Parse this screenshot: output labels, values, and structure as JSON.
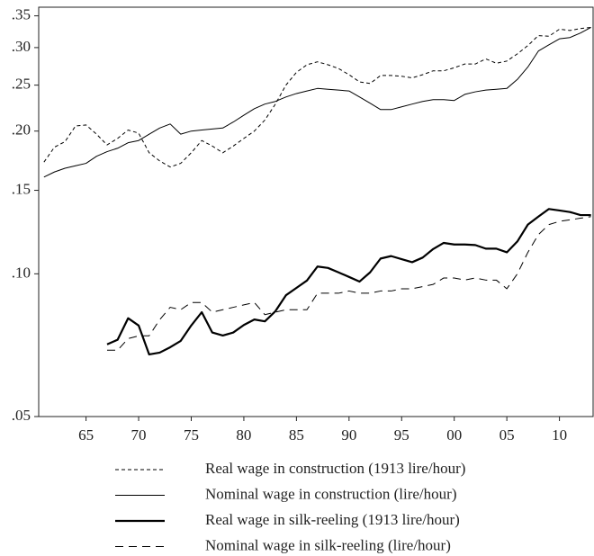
{
  "chart_data": {
    "type": "line",
    "log_y": true,
    "grid": false,
    "legend": "bottom",
    "x": [
      61,
      62,
      63,
      64,
      65,
      66,
      67,
      68,
      69,
      70,
      71,
      72,
      73,
      74,
      75,
      76,
      77,
      78,
      79,
      80,
      81,
      82,
      83,
      84,
      85,
      86,
      87,
      88,
      89,
      90,
      91,
      92,
      93,
      94,
      95,
      96,
      97,
      98,
      99,
      100,
      101,
      102,
      103,
      104,
      105,
      106,
      107,
      108,
      109,
      110,
      111,
      112,
      113
    ],
    "xlim": [
      60.5,
      113.2
    ],
    "xticks": [
      65,
      70,
      75,
      80,
      85,
      90,
      95,
      {
        "value": 100,
        "label": "00"
      },
      {
        "value": 105,
        "label": "05"
      },
      {
        "value": 110,
        "label": "10"
      }
    ],
    "ylim": [
      0.05,
      0.365
    ],
    "yticks": [
      {
        "value": 0.05,
        "label": ".05"
      },
      {
        "value": 0.1,
        "label": ".10"
      },
      {
        "value": 0.15,
        "label": ".15"
      },
      {
        "value": 0.2,
        "label": ".20"
      },
      {
        "value": 0.25,
        "label": ".25"
      },
      {
        "value": 0.3,
        "label": ".30"
      },
      {
        "value": 0.35,
        "label": ".35"
      }
    ],
    "series": [
      {
        "name": "Real wage in construction (1913 lire/hour)",
        "color": "#000000",
        "width": 1,
        "dash": "4 3",
        "values": [
          0.172,
          0.185,
          0.19,
          0.205,
          0.206,
          0.197,
          0.187,
          0.193,
          0.201,
          0.198,
          0.18,
          0.173,
          0.168,
          0.171,
          0.18,
          0.191,
          0.186,
          0.18,
          0.186,
          0.193,
          0.2,
          0.211,
          0.228,
          0.25,
          0.266,
          0.276,
          0.28,
          0.276,
          0.271,
          0.263,
          0.254,
          0.252,
          0.262,
          0.262,
          0.261,
          0.259,
          0.263,
          0.268,
          0.268,
          0.272,
          0.277,
          0.277,
          0.284,
          0.278,
          0.281,
          0.291,
          0.303,
          0.318,
          0.317,
          0.328,
          0.326,
          0.329,
          0.331
        ]
      },
      {
        "name": "Nominal wage in construction (lire/hour)",
        "color": "#000000",
        "width": 1,
        "dash": "none",
        "values": [
          0.16,
          0.164,
          0.167,
          0.169,
          0.171,
          0.177,
          0.181,
          0.184,
          0.189,
          0.191,
          0.197,
          0.203,
          0.207,
          0.197,
          0.2,
          0.201,
          0.202,
          0.203,
          0.209,
          0.216,
          0.223,
          0.228,
          0.231,
          0.236,
          0.24,
          0.243,
          0.246,
          0.245,
          0.244,
          0.243,
          0.236,
          0.229,
          0.222,
          0.222,
          0.225,
          0.228,
          0.231,
          0.233,
          0.233,
          0.232,
          0.239,
          0.242,
          0.244,
          0.245,
          0.246,
          0.257,
          0.273,
          0.295,
          0.304,
          0.313,
          0.315,
          0.322,
          0.331
        ]
      },
      {
        "name": "Real wage in silk-reeling (1913 lire/hour)",
        "color": "#000000",
        "width": 2.2,
        "dash": "none",
        "values": [
          null,
          null,
          null,
          null,
          null,
          null,
          0.071,
          0.0726,
          0.0806,
          0.0778,
          0.0676,
          0.0682,
          0.07,
          0.0722,
          0.0778,
          0.083,
          0.0752,
          0.0741,
          0.0752,
          0.078,
          0.0801,
          0.0794,
          0.0834,
          0.0901,
          0.0934,
          0.0968,
          0.1036,
          0.1029,
          0.1007,
          0.0985,
          0.0963,
          0.1007,
          0.1077,
          0.109,
          0.1074,
          0.1058,
          0.1082,
          0.1128,
          0.1162,
          0.1153,
          0.1153,
          0.115,
          0.113,
          0.113,
          0.111,
          0.117,
          0.127,
          0.132,
          0.137,
          0.136,
          0.135,
          0.133,
          0.133
        ]
      },
      {
        "name": "Nominal wage in silk-reeling (lire/hour)",
        "color": "#000000",
        "width": 1,
        "dash": "9 6",
        "values": [
          null,
          null,
          null,
          null,
          null,
          null,
          0.069,
          0.069,
          0.073,
          0.074,
          0.074,
          0.08,
          0.085,
          0.084,
          0.087,
          0.087,
          0.083,
          0.084,
          0.085,
          0.086,
          0.087,
          0.082,
          0.083,
          0.084,
          0.084,
          0.084,
          0.091,
          0.091,
          0.091,
          0.092,
          0.091,
          0.091,
          0.092,
          0.092,
          0.093,
          0.093,
          0.094,
          0.095,
          0.098,
          0.098,
          0.097,
          0.098,
          0.097,
          0.097,
          0.093,
          0.1,
          0.111,
          0.121,
          0.127,
          0.129,
          0.13,
          0.131,
          0.132
        ]
      }
    ]
  }
}
